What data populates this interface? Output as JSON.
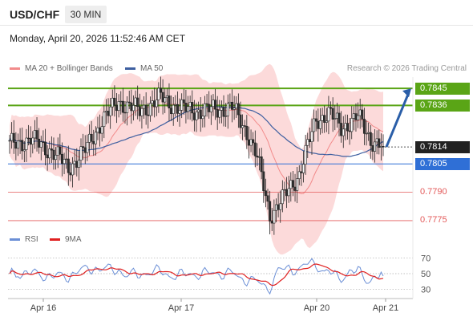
{
  "header": {
    "pair": "USD/CHF",
    "timeframe": "30 MIN",
    "datetime": "Monday, April 20, 2026 11:52:46 AM CET"
  },
  "legend": {
    "ma20_bb": "MA 20 + Bollinger Bands",
    "ma50": "MA 50",
    "research": "Research © 2026 Trading Central"
  },
  "rsi_legend": {
    "rsi": "RSI",
    "ma9": "9MA"
  },
  "colors": {
    "resistance": "#5aa516",
    "pivot": "#2f6fd6",
    "support": "#e35a5a",
    "current": "#222222",
    "bollinger_fill": "#fcd4d4",
    "ma20": "#f28b8b",
    "ma50": "#3e5fa0",
    "candle_up": "#ffffff",
    "candle_down": "#2f2f2f",
    "arrow": "#2a5ea8",
    "rsi": "#6b8fd6",
    "rsi_ma": "#e02020"
  },
  "price_levels": [
    {
      "label": "0.7845",
      "value": 0.7845,
      "kind": "resistance"
    },
    {
      "label": "0.7836",
      "value": 0.7836,
      "kind": "resistance"
    },
    {
      "label": "0.7814",
      "value": 0.7814,
      "kind": "current"
    },
    {
      "label": "0.7805",
      "value": 0.7805,
      "kind": "pivot"
    },
    {
      "label": "0.7790",
      "value": 0.779,
      "kind": "support"
    },
    {
      "label": "0.7775",
      "value": 0.7775,
      "kind": "support"
    }
  ],
  "rsi_axis": {
    "ticks": [
      "70",
      "50",
      "30"
    ],
    "values": [
      70,
      50,
      30
    ]
  },
  "chart_data": {
    "type": "candlestick",
    "title": "USD/CHF",
    "x_ticks": [
      "Apr 16",
      "Apr 17",
      "Apr 20",
      "Apr 21"
    ],
    "y_range": [
      0.7772,
      0.7851
    ],
    "series": [
      {
        "name": "MA 20 + Bollinger Bands",
        "values": []
      },
      {
        "name": "MA 50",
        "values": []
      }
    ],
    "key_points": [
      {
        "x": "Apr 16",
        "close": 0.7815
      },
      {
        "x": "Apr 16 (low)",
        "close": 0.78
      },
      {
        "x": "Apr 17 (high)",
        "close": 0.7843
      },
      {
        "x": "Apr 17 (late)",
        "close": 0.7832
      },
      {
        "x": "Apr 20 (low)",
        "close": 0.7775
      },
      {
        "x": "Apr 20",
        "close": 0.7828
      },
      {
        "x": "Apr 21 (last)",
        "close": 0.7814
      }
    ],
    "projection": {
      "from": 0.7814,
      "to": 0.7845
    },
    "rsi": {
      "range": [
        20,
        80
      ],
      "levels": [
        70,
        50,
        30
      ],
      "last": 47,
      "ma_last": 50
    }
  }
}
